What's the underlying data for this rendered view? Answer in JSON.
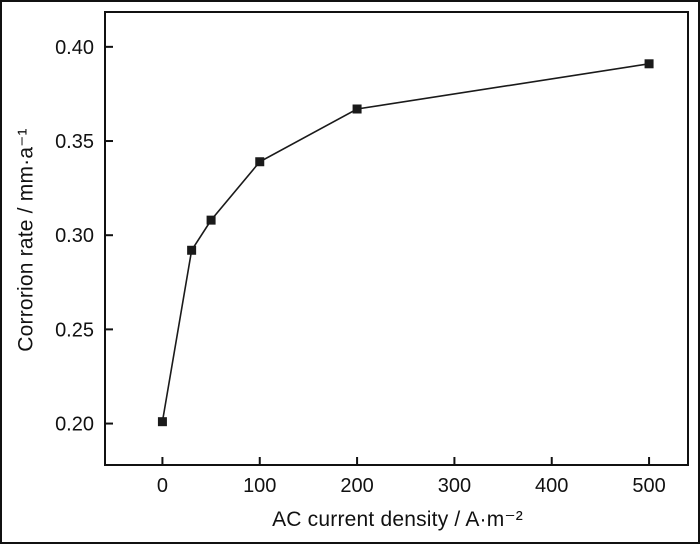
{
  "figure": {
    "background": "#ffffff",
    "axis_color": "#111111",
    "line_color": "#1a1a1a",
    "marker_color": "#1a1a1a"
  },
  "chart_data": {
    "type": "line",
    "title": "",
    "xlabel": "AC current density / A·m⁻²",
    "ylabel": "Corrorion rate / mm·a⁻¹",
    "series": [
      {
        "name": "corrosion-rate",
        "x": [
          0,
          30,
          50,
          100,
          200,
          500
        ],
        "y": [
          0.201,
          0.292,
          0.308,
          0.339,
          0.367,
          0.391
        ],
        "marker": "square",
        "line_style": "solid"
      }
    ],
    "xlim": [
      -59,
      540
    ],
    "ylim": [
      0.178,
      0.4185
    ],
    "x_ticks": [
      0,
      100,
      200,
      300,
      400,
      500
    ],
    "x_tick_labels": [
      "0",
      "100",
      "200",
      "300",
      "400",
      "500"
    ],
    "y_ticks": [
      0.2,
      0.25,
      0.3,
      0.35,
      0.4
    ],
    "y_tick_labels": [
      "0.20",
      "0.25",
      "0.30",
      "0.35",
      "0.40"
    ],
    "grid": false,
    "legend": "none"
  }
}
